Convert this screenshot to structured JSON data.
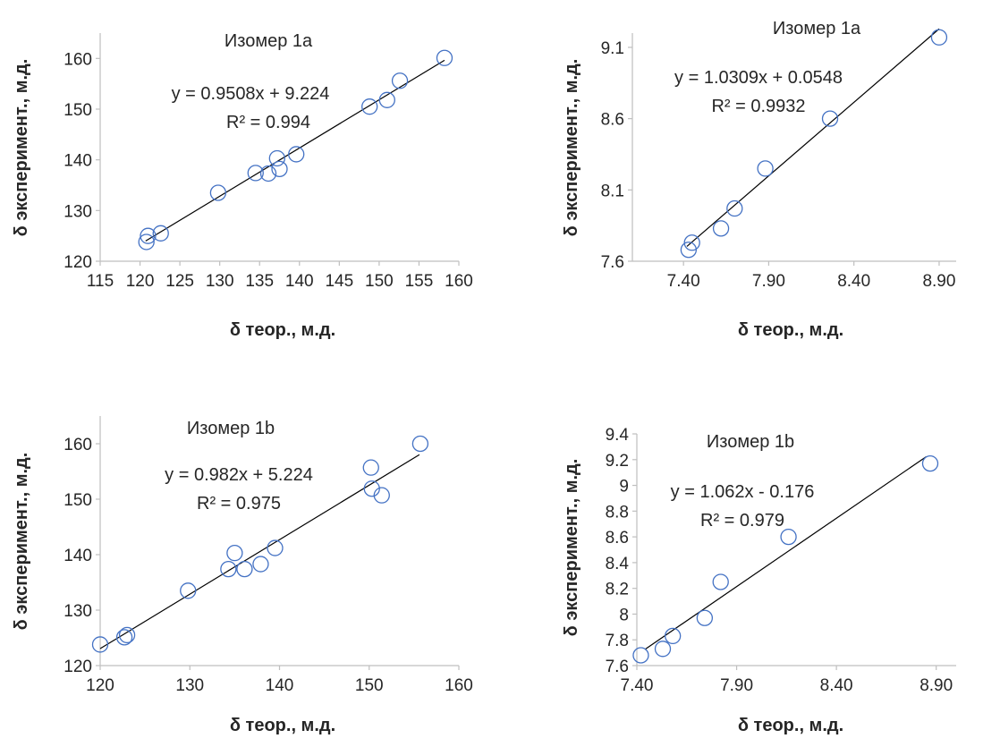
{
  "chart_data": [
    {
      "type": "scatter",
      "title": "Изомер 1a",
      "xlabel": "δ теор., м.д.",
      "ylabel": "δ эксперимент., м.д.",
      "xlim": [
        115,
        160
      ],
      "ylim": [
        120,
        165
      ],
      "xticks": [
        "115",
        "120",
        "125",
        "130",
        "135",
        "140",
        "145",
        "150",
        "155",
        "160"
      ],
      "yticks": [
        "120",
        "130",
        "140",
        "150",
        "160"
      ],
      "equation": "y = 0.9508x + 9.224",
      "r2": "R² = 0.994",
      "trendline": {
        "slope": 0.9508,
        "intercept": 9.224,
        "x_range": [
          120.7,
          158.2
        ]
      },
      "points": [
        {
          "x": 120.8,
          "y": 123.8
        },
        {
          "x": 121.0,
          "y": 125.0
        },
        {
          "x": 122.6,
          "y": 125.5
        },
        {
          "x": 129.8,
          "y": 133.5
        },
        {
          "x": 134.5,
          "y": 137.4
        },
        {
          "x": 136.1,
          "y": 137.3
        },
        {
          "x": 137.2,
          "y": 140.3
        },
        {
          "x": 137.5,
          "y": 138.2
        },
        {
          "x": 139.6,
          "y": 141.1
        },
        {
          "x": 148.8,
          "y": 150.5
        },
        {
          "x": 151.0,
          "y": 151.8
        },
        {
          "x": 152.6,
          "y": 155.6
        },
        {
          "x": 158.2,
          "y": 160.1
        }
      ]
    },
    {
      "type": "scatter",
      "title": "Изомер 1a",
      "xlabel": "δ теор., м.д.",
      "ylabel": "δ эксперимент., м.д.",
      "xlim": [
        7.1,
        9.0
      ],
      "ylim": [
        7.6,
        9.2
      ],
      "xticks": [
        "7.40",
        "7.90",
        "8.40",
        "8.90"
      ],
      "yticks": [
        "7.6",
        "8.1",
        "8.6",
        "9.1"
      ],
      "equation": "y = 1.0309x + 0.0548",
      "r2": "R² = 0.9932",
      "trendline": {
        "slope": 1.0309,
        "intercept": 0.0548,
        "x_range": [
          7.42,
          8.9
        ]
      },
      "points": [
        {
          "x": 7.43,
          "y": 7.68
        },
        {
          "x": 7.45,
          "y": 7.73
        },
        {
          "x": 7.62,
          "y": 7.83
        },
        {
          "x": 7.7,
          "y": 7.97
        },
        {
          "x": 7.88,
          "y": 8.25
        },
        {
          "x": 8.26,
          "y": 8.6
        },
        {
          "x": 8.9,
          "y": 9.17
        }
      ]
    },
    {
      "type": "scatter",
      "title": "Изомер 1b",
      "xlabel": "δ теор., м.д.",
      "ylabel": "δ эксперимент., м.д.",
      "xlim": [
        120,
        160
      ],
      "ylim": [
        120,
        165
      ],
      "xticks": [
        "120",
        "130",
        "140",
        "150",
        "160"
      ],
      "yticks": [
        "120",
        "130",
        "140",
        "150",
        "160"
      ],
      "equation": "y = 0.982x + 5.224",
      "r2": "R² = 0.975",
      "trendline": {
        "slope": 0.982,
        "intercept": 5.224,
        "x_range": [
          120,
          155.6
        ]
      },
      "points": [
        {
          "x": 120.0,
          "y": 123.8
        },
        {
          "x": 122.7,
          "y": 125.1
        },
        {
          "x": 123.0,
          "y": 125.5
        },
        {
          "x": 129.8,
          "y": 133.5
        },
        {
          "x": 134.3,
          "y": 137.4
        },
        {
          "x": 135.0,
          "y": 140.3
        },
        {
          "x": 136.1,
          "y": 137.4
        },
        {
          "x": 137.9,
          "y": 138.3
        },
        {
          "x": 139.5,
          "y": 141.2
        },
        {
          "x": 150.2,
          "y": 155.7
        },
        {
          "x": 150.3,
          "y": 151.9
        },
        {
          "x": 151.4,
          "y": 150.7
        },
        {
          "x": 155.7,
          "y": 160.0
        }
      ]
    },
    {
      "type": "scatter",
      "title": "Изомер 1b",
      "xlabel": "δ теор., м.д.",
      "ylabel": "δ эксперимент., м.д.",
      "xlim": [
        7.4,
        9.0
      ],
      "ylim": [
        7.6,
        9.4
      ],
      "xticks": [
        "7.40",
        "7.90",
        "8.40",
        "8.90"
      ],
      "yticks": [
        "7.6",
        "7.8",
        "8",
        "8.2",
        "8.4",
        "8.6",
        "8.8",
        "9",
        "9.2",
        "9.4"
      ],
      "equation": "y = 1.062x - 0.176",
      "r2": "R² = 0.979",
      "trendline": {
        "slope": 1.062,
        "intercept": -0.176,
        "x_range": [
          7.44,
          8.85
        ]
      },
      "points": [
        {
          "x": 7.42,
          "y": 7.68
        },
        {
          "x": 7.53,
          "y": 7.73
        },
        {
          "x": 7.58,
          "y": 7.83
        },
        {
          "x": 7.74,
          "y": 7.97
        },
        {
          "x": 7.82,
          "y": 8.25
        },
        {
          "x": 8.16,
          "y": 8.6
        },
        {
          "x": 8.87,
          "y": 9.17
        }
      ]
    }
  ]
}
